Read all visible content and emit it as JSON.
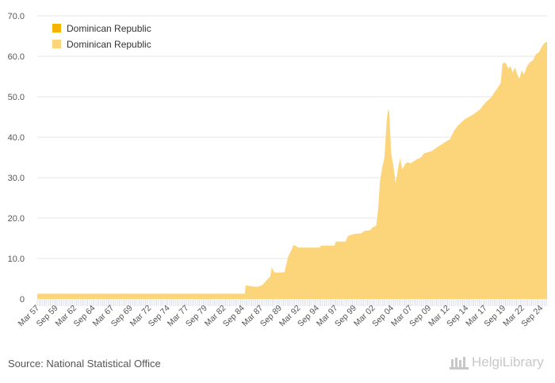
{
  "colors": {
    "series_dark": "#f5b400",
    "series_light": "#fcd47a",
    "grid": "#e6e6e6",
    "axis_text": "#555555",
    "tick": "#cfd6e6"
  },
  "footer": {
    "source": "Source: National Statistical Office",
    "logo": "HelgiLibrary"
  },
  "chart_data": {
    "type": "area",
    "title": "",
    "xlabel": "",
    "ylabel": "",
    "ylim": [
      0,
      70
    ],
    "grid": true,
    "legend_position": "top-left",
    "y_ticks": [
      "0",
      "10.0",
      "20.0",
      "30.0",
      "40.0",
      "50.0",
      "60.0",
      "70.0"
    ],
    "x_tick_labels": [
      "Mar 57",
      "Sep 59",
      "Mar 62",
      "Sep 64",
      "Mar 67",
      "Sep 69",
      "Mar 72",
      "Sep 74",
      "Mar 77",
      "Sep 79",
      "Mar 82",
      "Sep 84",
      "Mar 87",
      "Sep 89",
      "Mar 92",
      "Sep 94",
      "Mar 97",
      "Sep 99",
      "Mar 02",
      "Sep 04",
      "Mar 07",
      "Sep 09",
      "Mar 12",
      "Sep 14",
      "Mar 17",
      "Sep 19",
      "Mar 22",
      "Sep 24"
    ],
    "x_start": 1957.17,
    "x_end": 2025.5,
    "series": [
      {
        "name": "Dominican Republic",
        "color": "#f5b400",
        "points": []
      },
      {
        "name": "Dominican Republic",
        "color": "#fcd47a",
        "points": [
          [
            1957.17,
            1.3
          ],
          [
            1985.0,
            1.3
          ],
          [
            1985.1,
            3.4
          ],
          [
            1986.0,
            3.1
          ],
          [
            1986.7,
            3.0
          ],
          [
            1987.3,
            3.4
          ],
          [
            1988.0,
            4.8
          ],
          [
            1988.4,
            5.6
          ],
          [
            1988.6,
            7.9
          ],
          [
            1988.9,
            6.6
          ],
          [
            1989.4,
            6.5
          ],
          [
            1990.3,
            6.6
          ],
          [
            1990.8,
            10.5
          ],
          [
            1991.3,
            12.3
          ],
          [
            1991.5,
            13.4
          ],
          [
            1991.9,
            13.0
          ],
          [
            1992.2,
            12.7
          ],
          [
            1995.0,
            12.7
          ],
          [
            1995.2,
            13.2
          ],
          [
            1997.0,
            13.2
          ],
          [
            1997.2,
            14.2
          ],
          [
            1998.5,
            14.2
          ],
          [
            1998.8,
            15.5
          ],
          [
            1999.2,
            15.8
          ],
          [
            1999.7,
            16.1
          ],
          [
            2000.6,
            16.2
          ],
          [
            2001.0,
            16.8
          ],
          [
            2001.8,
            17.0
          ],
          [
            2002.0,
            17.5
          ],
          [
            2002.3,
            17.9
          ],
          [
            2002.6,
            18.1
          ],
          [
            2002.9,
            23.0
          ],
          [
            2003.1,
            29.0
          ],
          [
            2003.4,
            32.5
          ],
          [
            2003.7,
            35.0
          ],
          [
            2004.0,
            44.0
          ],
          [
            2004.2,
            47.0
          ],
          [
            2004.35,
            46.0
          ],
          [
            2004.6,
            36.0
          ],
          [
            2004.9,
            33.0
          ],
          [
            2005.2,
            28.5
          ],
          [
            2005.5,
            32.0
          ],
          [
            2005.8,
            34.8
          ],
          [
            2006.1,
            32.0
          ],
          [
            2006.5,
            33.5
          ],
          [
            2006.9,
            33.8
          ],
          [
            2007.2,
            33.5
          ],
          [
            2007.6,
            34.0
          ],
          [
            2008.0,
            34.5
          ],
          [
            2008.6,
            35.0
          ],
          [
            2009.0,
            36.0
          ],
          [
            2010.0,
            36.5
          ],
          [
            2011.0,
            37.8
          ],
          [
            2012.0,
            39.0
          ],
          [
            2012.5,
            39.5
          ],
          [
            2013.0,
            41.5
          ],
          [
            2013.5,
            42.8
          ],
          [
            2014.5,
            44.5
          ],
          [
            2015.5,
            45.5
          ],
          [
            2016.5,
            46.8
          ],
          [
            2017.2,
            48.5
          ],
          [
            2018.0,
            49.8
          ],
          [
            2018.6,
            51.5
          ],
          [
            2019.0,
            52.5
          ],
          [
            2019.3,
            53.5
          ],
          [
            2019.5,
            58.0
          ],
          [
            2019.75,
            58.5
          ],
          [
            2020.0,
            58.2
          ],
          [
            2020.3,
            57.0
          ],
          [
            2020.6,
            57.5
          ],
          [
            2020.9,
            56.0
          ],
          [
            2021.2,
            57.3
          ],
          [
            2021.5,
            55.5
          ],
          [
            2021.8,
            54.5
          ],
          [
            2022.1,
            56.5
          ],
          [
            2022.4,
            55.5
          ],
          [
            2022.8,
            57.5
          ],
          [
            2023.2,
            58.5
          ],
          [
            2023.6,
            59.0
          ],
          [
            2024.0,
            60.5
          ],
          [
            2024.4,
            61.0
          ],
          [
            2024.7,
            62.0
          ],
          [
            2025.0,
            63.0
          ],
          [
            2025.3,
            63.5
          ],
          [
            2025.5,
            63.5
          ]
        ]
      }
    ]
  }
}
